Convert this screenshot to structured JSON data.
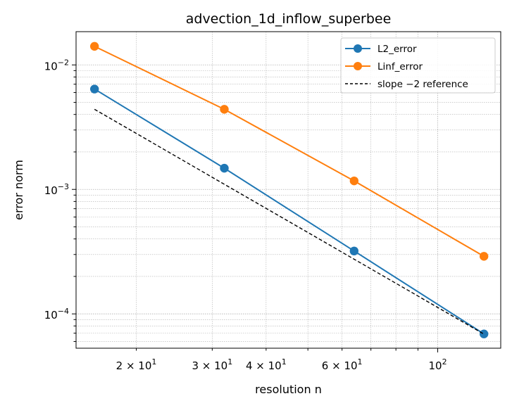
{
  "chart_data": {
    "type": "line",
    "title": "advection_1d_inflow_superbee",
    "xlabel": "resolution n",
    "ylabel": "error norm",
    "xscale": "log",
    "yscale": "log",
    "xlim": [
      14.5,
      140
    ],
    "ylim": [
      5.3e-05,
      0.0185
    ],
    "grid": true,
    "legend_position": "top-right",
    "x": [
      16,
      32,
      64,
      128
    ],
    "series": [
      {
        "name": "L2_error",
        "color": "#1f77b4",
        "style": "solid-marker",
        "values": [
          0.0064,
          0.00148,
          0.00032,
          6.9e-05
        ]
      },
      {
        "name": "Linf_error",
        "color": "#ff7f0e",
        "style": "solid-marker",
        "values": [
          0.0141,
          0.0044,
          0.00117,
          0.00029
        ]
      },
      {
        "name": "slope −2 reference",
        "color": "#000000",
        "style": "dashed",
        "values": [
          0.0044,
          0.0011,
          0.000275,
          6.88e-05
        ]
      }
    ],
    "xticks": [
      {
        "value": 20,
        "base": "2 × 10",
        "exp": "1"
      },
      {
        "value": 30,
        "base": "3 × 10",
        "exp": "1"
      },
      {
        "value": 40,
        "base": "4 × 10",
        "exp": "1"
      },
      {
        "value": 60,
        "base": "6 × 10",
        "exp": "1"
      },
      {
        "value": 100,
        "base": "10",
        "exp": "2"
      }
    ],
    "yticks": [
      {
        "value": 0.0001,
        "base": "10",
        "exp": "−4"
      },
      {
        "value": 0.001,
        "base": "10",
        "exp": "−3"
      },
      {
        "value": 0.01,
        "base": "10",
        "exp": "−2"
      }
    ]
  }
}
